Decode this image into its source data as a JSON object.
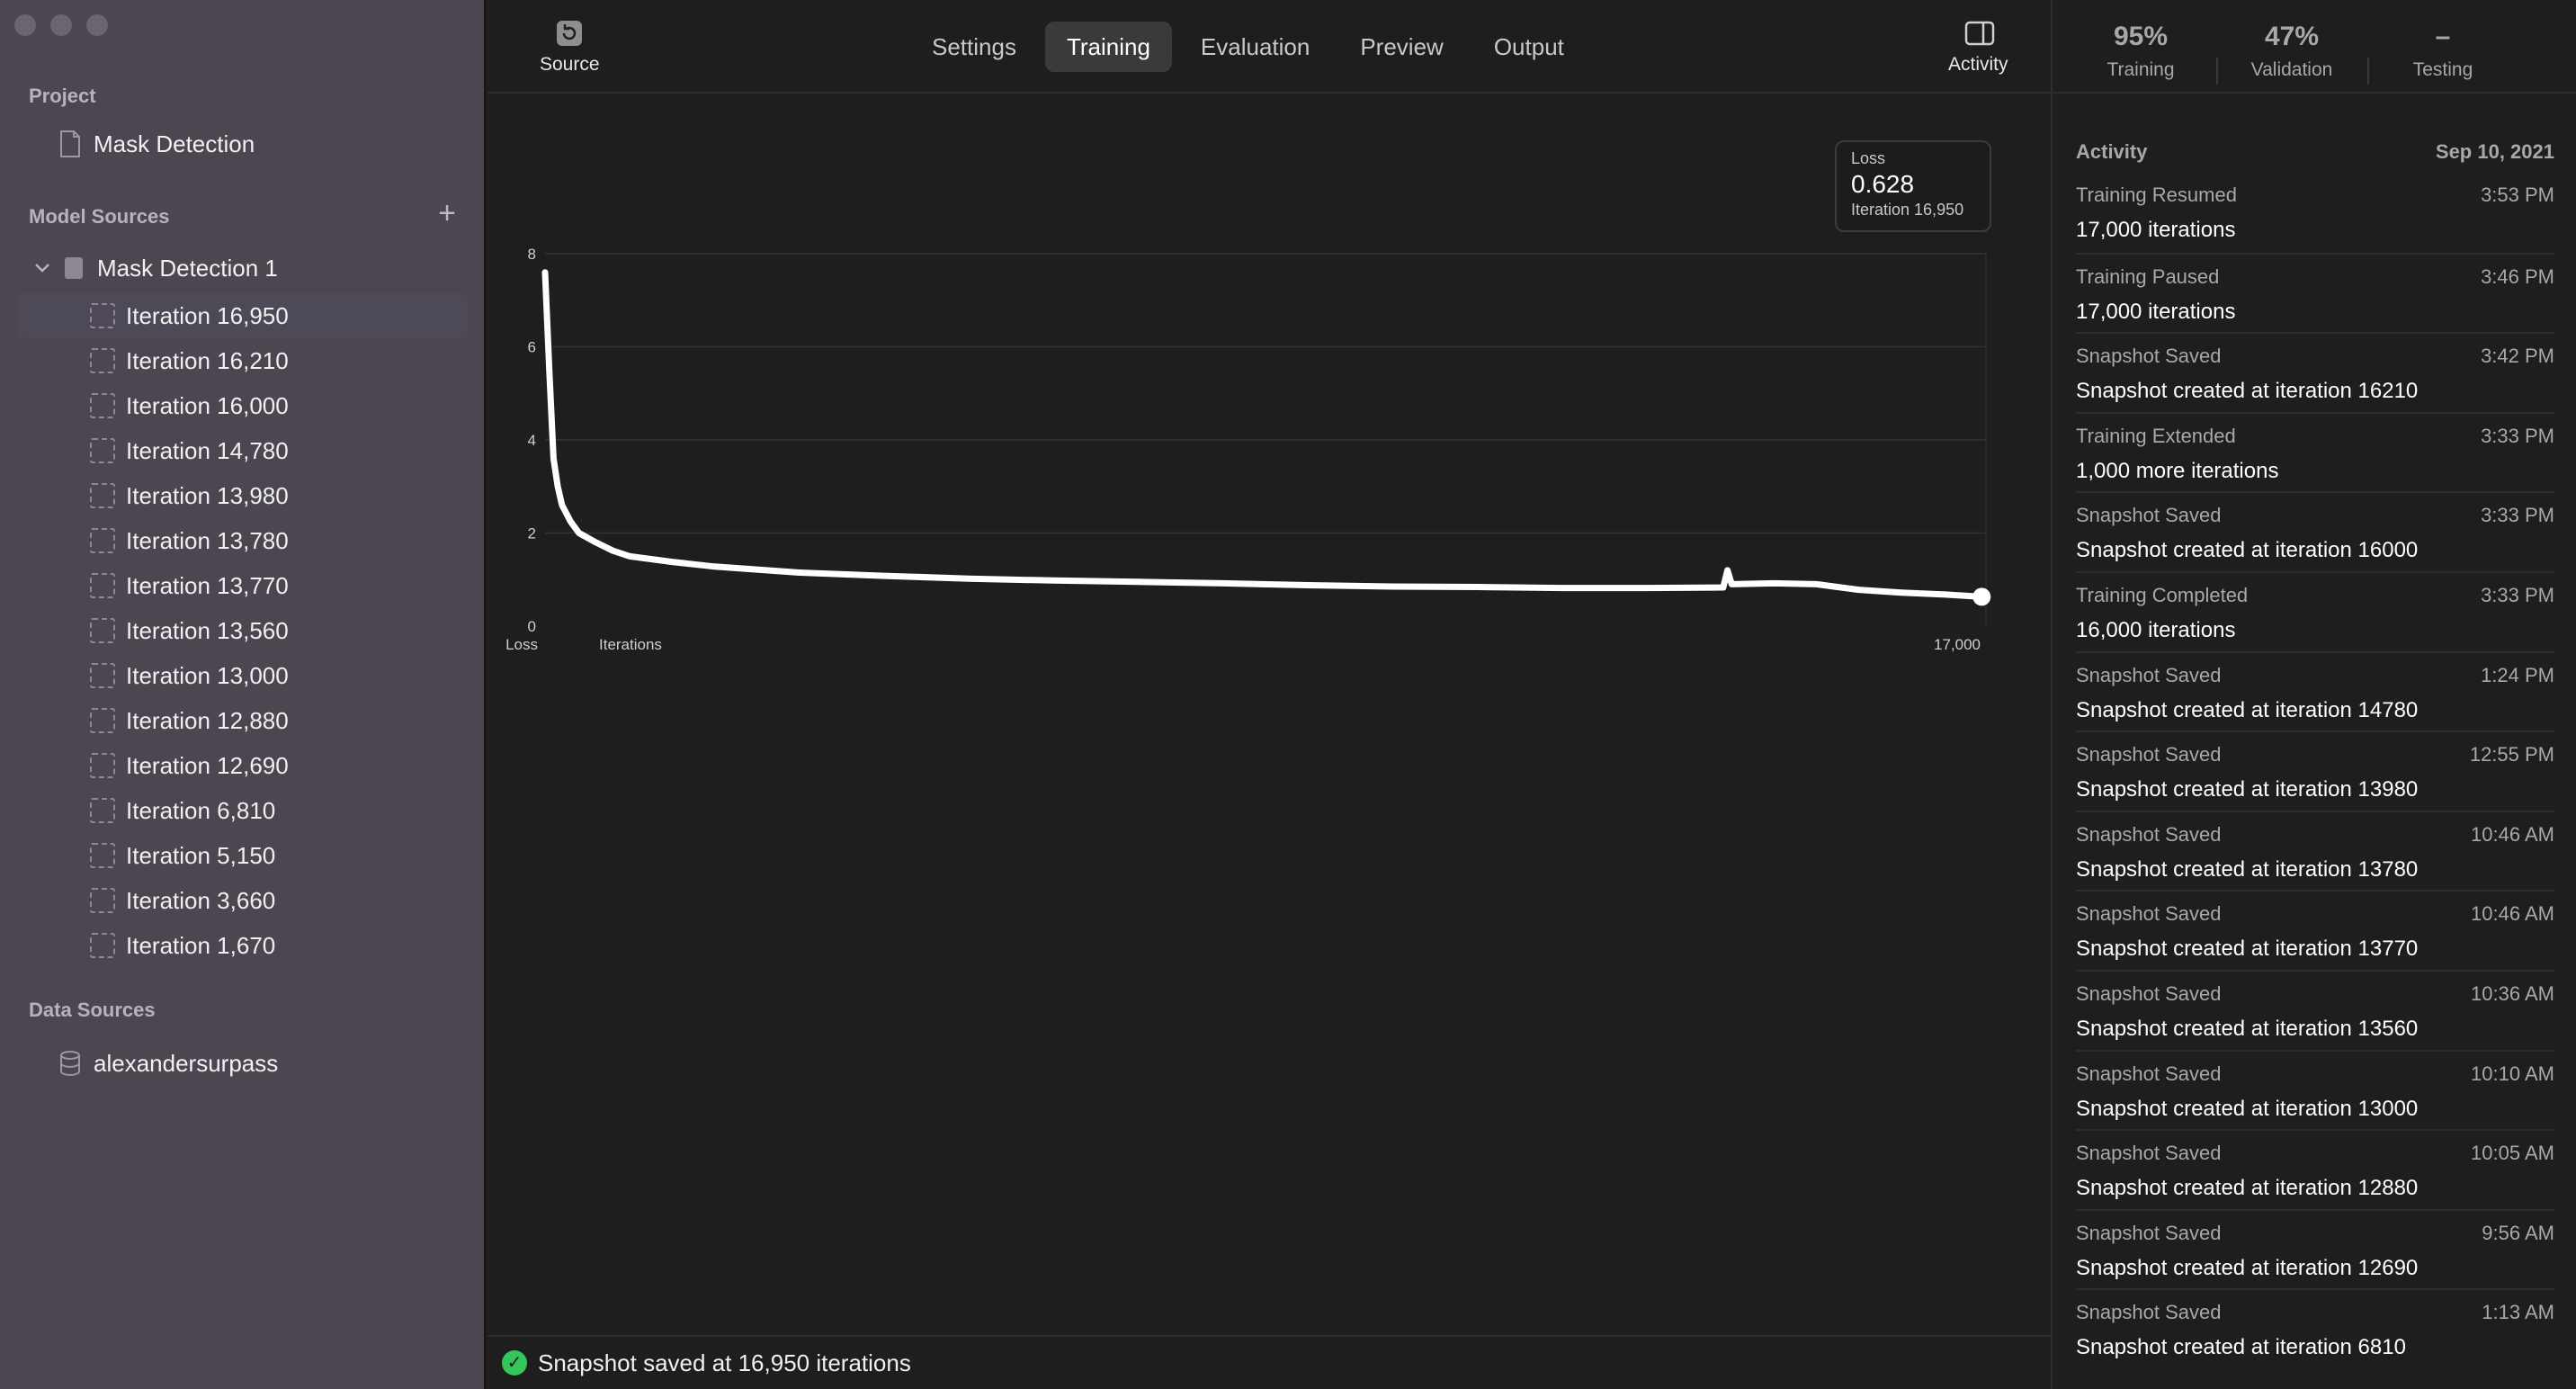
{
  "sidebar": {
    "project_heading": "Project",
    "project_name": "Mask Detection",
    "model_sources_heading": "Model Sources",
    "model_name": "Mask Detection 1",
    "iterations": [
      "Iteration 16,950",
      "Iteration 16,210",
      "Iteration 16,000",
      "Iteration 14,780",
      "Iteration 13,980",
      "Iteration 13,780",
      "Iteration 13,770",
      "Iteration 13,560",
      "Iteration 13,000",
      "Iteration 12,880",
      "Iteration 12,690",
      "Iteration 6,810",
      "Iteration 5,150",
      "Iteration 3,660",
      "Iteration 1,670"
    ],
    "data_sources_heading": "Data Sources",
    "data_source_name": "alexandersurpass"
  },
  "toolbar": {
    "source_label": "Source",
    "activity_label": "Activity",
    "tabs": [
      "Settings",
      "Training",
      "Evaluation",
      "Preview",
      "Output"
    ],
    "active_tab": "Training"
  },
  "tooltip": {
    "label": "Loss",
    "value": "0.628",
    "iteration": "Iteration 16,950"
  },
  "chart_data": {
    "type": "line",
    "ylabel": "Loss",
    "xlabel": "Iterations",
    "y_ticks": [
      "0",
      "2",
      "4",
      "6",
      "8"
    ],
    "x_end_label": "17,000",
    "ylim": [
      0,
      8
    ],
    "xlim": [
      0,
      17000
    ],
    "grid": true,
    "series": [
      {
        "x": [
          0,
          50,
          100,
          150,
          200,
          300,
          400,
          600,
          800,
          1000,
          1500,
          2000,
          3000,
          4000,
          5000,
          6000,
          7000,
          8000,
          9000,
          10000,
          11000,
          12000,
          13000,
          13900,
          13950,
          14000,
          14500,
          15000,
          15500,
          16000,
          16500,
          16950
        ],
        "y": [
          7.6,
          5.5,
          3.6,
          3.0,
          2.6,
          2.25,
          2.0,
          1.8,
          1.62,
          1.5,
          1.38,
          1.28,
          1.15,
          1.08,
          1.02,
          0.98,
          0.95,
          0.92,
          0.88,
          0.85,
          0.84,
          0.82,
          0.82,
          0.83,
          1.2,
          0.9,
          0.92,
          0.9,
          0.78,
          0.72,
          0.68,
          0.63
        ]
      }
    ]
  },
  "status": {
    "message": "Snapshot saved at 16,950 iterations"
  },
  "stats": [
    {
      "value": "95%",
      "label": "Training"
    },
    {
      "value": "47%",
      "label": "Validation"
    },
    {
      "value": "–",
      "label": "Testing"
    }
  ],
  "activity": {
    "heading": "Activity",
    "date": "Sep 10, 2021",
    "items": [
      {
        "title": "Training Resumed",
        "time": "3:53 PM",
        "detail": "17,000 iterations"
      },
      {
        "title": "Training Paused",
        "time": "3:46 PM",
        "detail": "17,000 iterations"
      },
      {
        "title": "Snapshot Saved",
        "time": "3:42 PM",
        "detail": "Snapshot created at iteration 16210"
      },
      {
        "title": "Training Extended",
        "time": "3:33 PM",
        "detail": "1,000 more iterations"
      },
      {
        "title": "Snapshot Saved",
        "time": "3:33 PM",
        "detail": "Snapshot created at iteration 16000"
      },
      {
        "title": "Training Completed",
        "time": "3:33 PM",
        "detail": "16,000 iterations"
      },
      {
        "title": "Snapshot Saved",
        "time": "1:24 PM",
        "detail": "Snapshot created at iteration 14780"
      },
      {
        "title": "Snapshot Saved",
        "time": "12:55 PM",
        "detail": "Snapshot created at iteration 13980"
      },
      {
        "title": "Snapshot Saved",
        "time": "10:46 AM",
        "detail": "Snapshot created at iteration 13780"
      },
      {
        "title": "Snapshot Saved",
        "time": "10:46 AM",
        "detail": "Snapshot created at iteration 13770"
      },
      {
        "title": "Snapshot Saved",
        "time": "10:36 AM",
        "detail": "Snapshot created at iteration 13560"
      },
      {
        "title": "Snapshot Saved",
        "time": "10:10 AM",
        "detail": "Snapshot created at iteration 13000"
      },
      {
        "title": "Snapshot Saved",
        "time": "10:05 AM",
        "detail": "Snapshot created at iteration 12880"
      },
      {
        "title": "Snapshot Saved",
        "time": "9:56 AM",
        "detail": "Snapshot created at iteration 12690"
      },
      {
        "title": "Snapshot Saved",
        "time": "1:13 AM",
        "detail": "Snapshot created at iteration 6810"
      }
    ]
  }
}
